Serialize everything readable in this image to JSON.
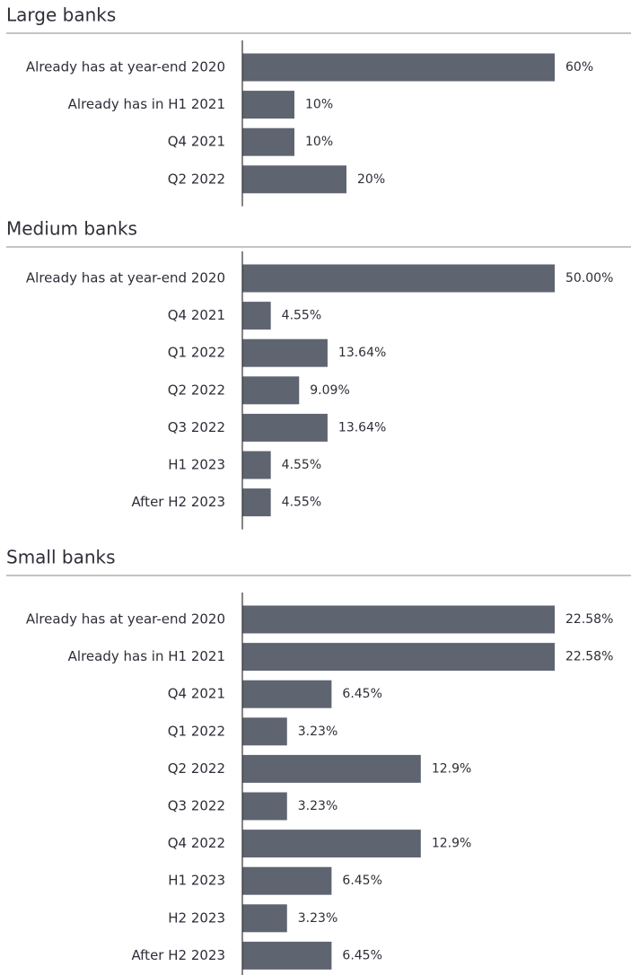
{
  "chart_data": [
    {
      "type": "bar",
      "title": "Large banks",
      "color": "#5f6570",
      "categories": [
        "Already has at year-end 2020",
        "Already has in H1 2021",
        "Q4 2021",
        "Q2 2022"
      ],
      "values": [
        60,
        10,
        10,
        20
      ],
      "value_labels": [
        "60%",
        "10%",
        "10%",
        "20%"
      ]
    },
    {
      "type": "bar",
      "title": "Medium banks",
      "color": "#5f6570",
      "categories": [
        "Already has at year-end 2020",
        "Q4 2021",
        "Q1 2022",
        "Q2 2022",
        "Q3 2022",
        "H1 2023",
        "After H2 2023"
      ],
      "values": [
        50,
        4.55,
        13.64,
        9.09,
        13.64,
        4.55,
        4.55
      ],
      "value_labels": [
        "50.00%",
        "4.55%",
        "13.64%",
        "9.09%",
        "13.64%",
        "4.55%",
        "4.55%"
      ]
    },
    {
      "type": "bar",
      "title": "Small banks",
      "color": "#5f6570",
      "categories": [
        "Already has at year-end 2020",
        "Already has in H1 2021",
        "Q4 2021",
        "Q1 2022",
        "Q2 2022",
        "Q3 2022",
        "Q4 2022",
        "H1 2023",
        "H2 2023",
        "After H2 2023"
      ],
      "values": [
        22.58,
        22.58,
        6.45,
        3.23,
        12.9,
        3.23,
        12.9,
        6.45,
        3.23,
        6.45
      ],
      "value_labels": [
        "22.58%",
        "22.58%",
        "6.45%",
        "3.23%",
        "12.9%",
        "3.23%",
        "12.9%",
        "6.45%",
        "3.23%",
        "6.45%"
      ]
    }
  ]
}
